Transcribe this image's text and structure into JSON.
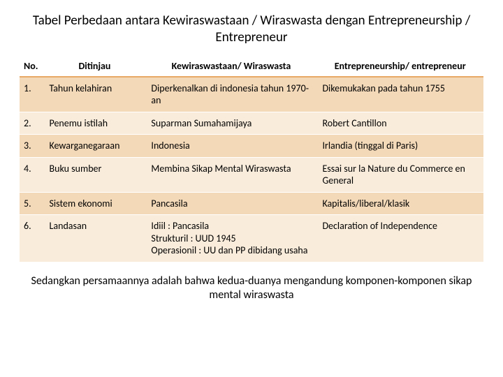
{
  "title": "Tabel Perbedaan antara Kewiraswastaan / Wiraswasta dengan Entrepreneurship / Entrepreneur",
  "table": {
    "type": "table",
    "header_bg": "#ffffff",
    "row_odd_bg": "#f4d9b8",
    "row_even_bg": "#f9ecdb",
    "border_accent": "#e8a866",
    "header_fontsize": 14,
    "cell_fontsize": 14,
    "columns": [
      {
        "key": "no",
        "label": "No.",
        "width": "5%",
        "align": "left"
      },
      {
        "key": "ditinjau",
        "label": "Ditinjau",
        "width": "22%",
        "align": "center"
      },
      {
        "key": "kewiraswastaan",
        "label": "Kewiraswastaan/ Wiraswasta",
        "width": "37%",
        "align": "center"
      },
      {
        "key": "entrepreneurship",
        "label": "Entrepreneurship/ entrepreneur",
        "width": "36%",
        "align": "center"
      }
    ],
    "rows": [
      {
        "no": "1.",
        "ditinjau": "Tahun kelahiran",
        "kewiraswastaan": "Diperkenalkan di indonesia tahun 1970-an",
        "entrepreneurship": "Dikemukakan pada tahun 1755"
      },
      {
        "no": "2.",
        "ditinjau": "Penemu istilah",
        "kewiraswastaan": "Suparman Sumahamijaya",
        "entrepreneurship": "Robert  Cantillon"
      },
      {
        "no": "3.",
        "ditinjau": "Kewarganegaraan",
        "kewiraswastaan": "Indonesia",
        "entrepreneurship": "Irlandia (tinggal di Paris)"
      },
      {
        "no": "4.",
        "ditinjau": "Buku sumber",
        "kewiraswastaan": "Membina Sikap Mental Wiraswasta",
        "entrepreneurship": "Essai sur la Nature du Commerce en General"
      },
      {
        "no": "5.",
        "ditinjau": "Sistem ekonomi",
        "kewiraswastaan": "Pancasila",
        "entrepreneurship": "Kapitalis/liberal/klasik"
      },
      {
        "no": "6.",
        "ditinjau": "Landasan",
        "kewiraswastaan": "Idiil : Pancasila\nStrukturil : UUD 1945\nOperasionil : UU dan PP dibidang usaha",
        "entrepreneurship": "Declaration of Independence"
      }
    ]
  },
  "footer": "Sedangkan persamaannya adalah bahwa kedua-duanya  mengandung komponen-komponen sikap mental wiraswasta",
  "colors": {
    "text": "#000000",
    "background": "#ffffff"
  },
  "title_fontsize": 19,
  "footer_fontsize": 16
}
